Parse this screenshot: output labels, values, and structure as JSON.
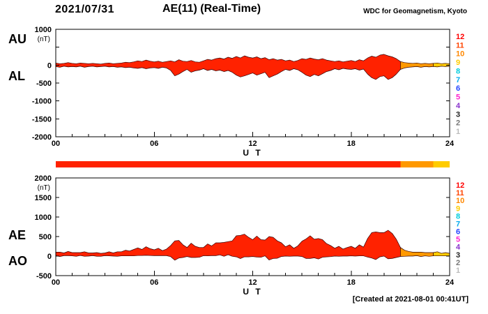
{
  "header": {
    "date": "2021/07/31",
    "title": "AE(11) (Real-Time)",
    "credit": "WDC for Geomagnetism, Kyoto"
  },
  "footer": {
    "created": "[Created at 2021-08-01 00:41UT]"
  },
  "colors": {
    "axis": "#000000",
    "trace_outline": "#330000",
    "trace_red": "#ff2200",
    "trace_orange": "#ff9900",
    "trace_yellow": "#ffcc00"
  },
  "station_scale": [
    {
      "n": "12",
      "color": "#ff0000"
    },
    {
      "n": "11",
      "color": "#ff4400"
    },
    {
      "n": "10",
      "color": "#ff8800"
    },
    {
      "n": "9",
      "color": "#ffcc00"
    },
    {
      "n": "8",
      "color": "#00ccdd"
    },
    {
      "n": "7",
      "color": "#00aaee"
    },
    {
      "n": "6",
      "color": "#2244ff"
    },
    {
      "n": "5",
      "color": "#ff22cc"
    },
    {
      "n": "4",
      "color": "#8833cc"
    },
    {
      "n": "3",
      "color": "#222222"
    },
    {
      "n": "2",
      "color": "#777777"
    },
    {
      "n": "1",
      "color": "#bbbbbb"
    }
  ],
  "station_bar": {
    "segments": [
      {
        "start": 0,
        "end": 21,
        "color": "#ff2200"
      },
      {
        "start": 21,
        "end": 23,
        "color": "#ff9900"
      },
      {
        "start": 23,
        "end": 24,
        "color": "#ffcc00"
      }
    ]
  },
  "chart_data": [
    {
      "type": "area",
      "panel": "AU / AL indices",
      "xlabel": "U T",
      "ylabel": "(nT)",
      "x_start_hour": 0,
      "x_end_hour": 24,
      "x_step_hours": 0.25,
      "ylim": [
        -2000,
        1000
      ],
      "yticks": [
        {
          "v": 1000,
          "label": "1000"
        },
        {
          "v": 500,
          "label": ""
        },
        {
          "v": 0,
          "label": "0"
        },
        {
          "v": -500,
          "label": "-500"
        },
        {
          "v": -1000,
          "label": "-1000"
        },
        {
          "v": -1500,
          "label": "-1500"
        },
        {
          "v": -2000,
          "label": "-2000"
        }
      ],
      "xticks": [
        {
          "v": 0,
          "label": "00"
        },
        {
          "v": 6,
          "label": "06"
        },
        {
          "v": 12,
          "label": "12"
        },
        {
          "v": 18,
          "label": "18"
        },
        {
          "v": 24,
          "label": "24"
        }
      ],
      "color_segments": [
        {
          "start": 0,
          "end": 21,
          "color": "#ff2200"
        },
        {
          "start": 21,
          "end": 23,
          "color": "#ff9900"
        },
        {
          "start": 23,
          "end": 24,
          "color": "#ffcc00"
        }
      ],
      "series": [
        {
          "name": "AU",
          "role": "upper",
          "values": [
            60,
            40,
            50,
            70,
            50,
            40,
            60,
            50,
            40,
            50,
            40,
            30,
            50,
            60,
            40,
            50,
            60,
            80,
            70,
            90,
            120,
            100,
            140,
            110,
            90,
            110,
            80,
            100,
            120,
            90,
            150,
            110,
            100,
            130,
            90,
            80,
            120,
            160,
            140,
            180,
            200,
            170,
            220,
            190,
            240,
            200,
            260,
            220,
            200,
            230,
            180,
            210,
            150,
            180,
            140,
            160,
            120,
            140,
            100,
            130,
            180,
            160,
            200,
            170,
            150,
            180,
            140,
            120,
            100,
            120,
            90,
            110,
            130,
            100,
            150,
            120,
            200,
            250,
            220,
            280,
            300,
            260,
            230,
            180,
            100,
            70,
            60,
            50,
            60,
            40,
            50,
            40,
            50,
            60,
            40,
            50,
            40
          ]
        },
        {
          "name": "AL",
          "role": "lower",
          "values": [
            -40,
            -60,
            -30,
            -50,
            -40,
            -50,
            -30,
            -60,
            -40,
            -30,
            -50,
            -40,
            -30,
            -50,
            -40,
            -60,
            -50,
            -70,
            -60,
            -80,
            -90,
            -70,
            -100,
            -80,
            -70,
            -90,
            -60,
            -80,
            -150,
            -300,
            -250,
            -180,
            -120,
            -200,
            -160,
            -140,
            -100,
            -150,
            -120,
            -160,
            -140,
            -180,
            -150,
            -200,
            -280,
            -330,
            -300,
            -260,
            -220,
            -280,
            -240,
            -200,
            -350,
            -300,
            -250,
            -180,
            -120,
            -150,
            -100,
            -130,
            -200,
            -280,
            -320,
            -260,
            -300,
            -240,
            -180,
            -150,
            -100,
            -130,
            -90,
            -110,
            -120,
            -100,
            -140,
            -110,
            -250,
            -350,
            -400,
            -320,
            -300,
            -400,
            -350,
            -250,
            -120,
            -80,
            -60,
            -50,
            -40,
            -60,
            -40,
            -50,
            -40,
            -50,
            -30,
            -40,
            -30
          ]
        }
      ]
    },
    {
      "type": "area",
      "panel": "AE / AO indices",
      "xlabel": "U T",
      "ylabel": "(nT)",
      "x_start_hour": 0,
      "x_end_hour": 24,
      "x_step_hours": 0.25,
      "ylim": [
        -500,
        2000
      ],
      "yticks": [
        {
          "v": 2000,
          "label": "2000"
        },
        {
          "v": 1500,
          "label": "1500"
        },
        {
          "v": 1000,
          "label": "1000"
        },
        {
          "v": 500,
          "label": "500"
        },
        {
          "v": 0,
          "label": "0"
        },
        {
          "v": -500,
          "label": "-500"
        }
      ],
      "xticks": [
        {
          "v": 0,
          "label": "00"
        },
        {
          "v": 6,
          "label": "06"
        },
        {
          "v": 12,
          "label": "12"
        },
        {
          "v": 18,
          "label": "18"
        },
        {
          "v": 24,
          "label": "24"
        }
      ],
      "color_segments": [
        {
          "start": 0,
          "end": 21,
          "color": "#ff2200"
        },
        {
          "start": 21,
          "end": 23,
          "color": "#ff9900"
        },
        {
          "start": 23,
          "end": 24,
          "color": "#ffcc00"
        }
      ],
      "series": [
        {
          "name": "AE",
          "role": "upper",
          "values": [
            100,
            100,
            80,
            120,
            90,
            90,
            90,
            110,
            80,
            80,
            90,
            70,
            80,
            110,
            80,
            110,
            110,
            150,
            130,
            170,
            210,
            170,
            240,
            190,
            160,
            200,
            140,
            180,
            270,
            390,
            400,
            290,
            220,
            330,
            250,
            220,
            220,
            310,
            260,
            340,
            340,
            350,
            370,
            390,
            520,
            530,
            560,
            480,
            420,
            510,
            420,
            410,
            500,
            480,
            390,
            340,
            240,
            290,
            200,
            260,
            380,
            440,
            520,
            430,
            450,
            420,
            320,
            270,
            200,
            250,
            180,
            220,
            250,
            200,
            290,
            230,
            450,
            600,
            620,
            600,
            600,
            660,
            580,
            430,
            220,
            150,
            120,
            100,
            100,
            100,
            90,
            90,
            90,
            110,
            70,
            90,
            70
          ]
        },
        {
          "name": "AO",
          "role": "lower",
          "values": [
            10,
            -10,
            10,
            10,
            5,
            -5,
            15,
            -5,
            0,
            10,
            -5,
            -5,
            10,
            5,
            0,
            -5,
            5,
            5,
            5,
            5,
            15,
            15,
            20,
            15,
            10,
            10,
            10,
            10,
            -15,
            -105,
            -50,
            -35,
            -10,
            -35,
            -35,
            -30,
            10,
            5,
            10,
            10,
            30,
            -5,
            35,
            -5,
            -20,
            -65,
            -20,
            -20,
            -10,
            -25,
            -30,
            5,
            -100,
            -60,
            -55,
            -10,
            0,
            -5,
            0,
            0,
            -10,
            -60,
            -60,
            -45,
            -75,
            -30,
            -20,
            -15,
            0,
            -5,
            0,
            0,
            5,
            0,
            5,
            5,
            -25,
            -50,
            -90,
            -20,
            0,
            -70,
            -60,
            -35,
            -10,
            -5,
            0,
            0,
            10,
            -10,
            5,
            -5,
            5,
            5,
            5,
            5,
            5
          ]
        }
      ]
    }
  ]
}
